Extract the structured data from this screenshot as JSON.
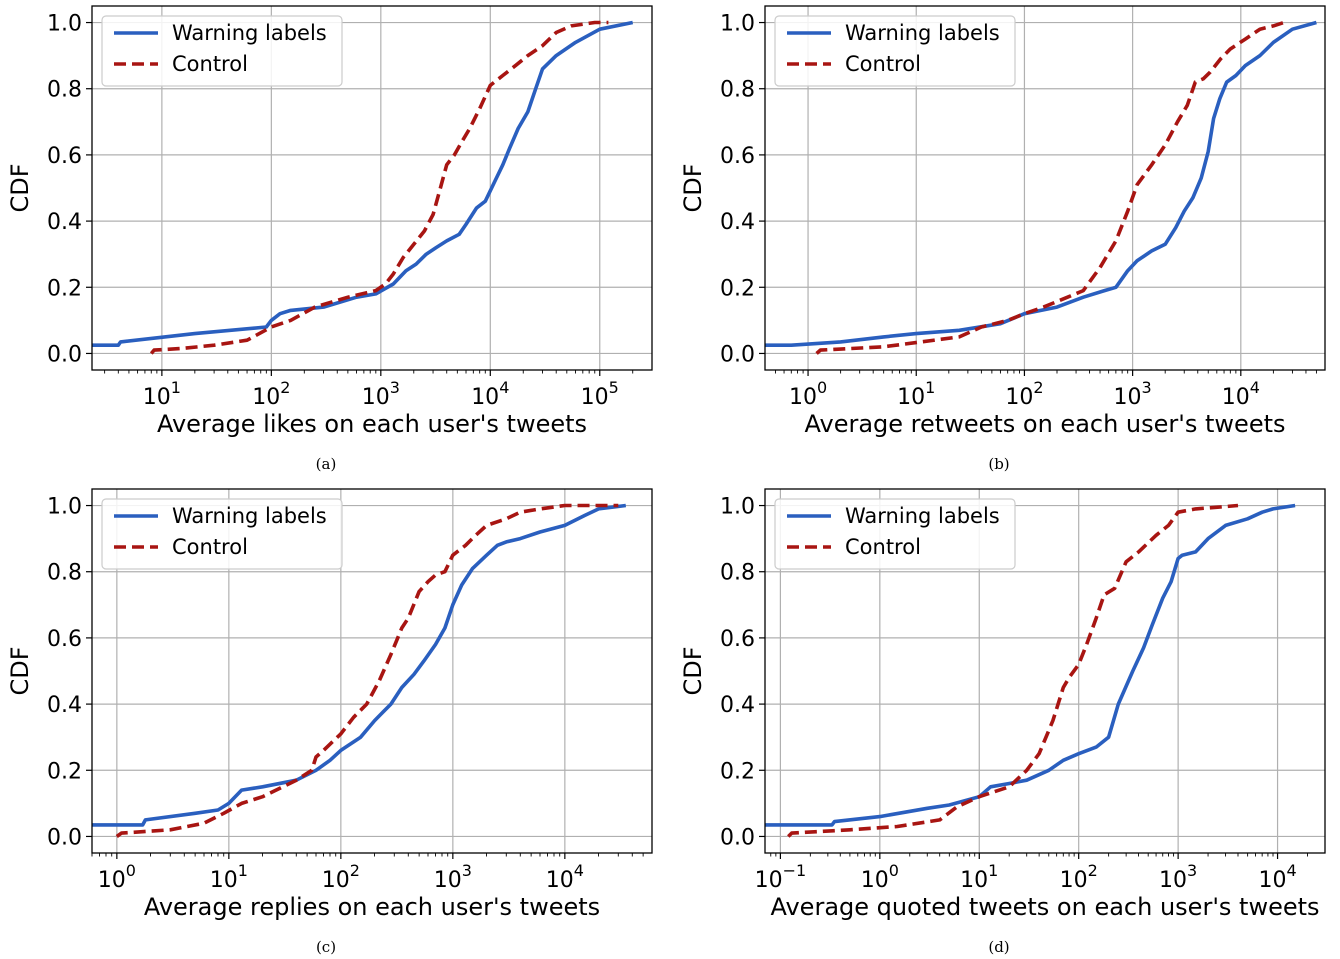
{
  "colors": {
    "warning": "#2a5fbf",
    "control": "#a81512",
    "grid": "#b0b0b0"
  },
  "chart_data": [
    {
      "type": "line",
      "caption": "(a)",
      "xscale": "log",
      "xlim": [
        2.3,
        300000
      ],
      "ylim": [
        -0.05,
        1.05
      ],
      "xlabel": "Average likes on each user's tweets",
      "ylabel": "CDF",
      "x_ticks": [
        {
          "base": "10",
          "exp": "1",
          "value": 10
        },
        {
          "base": "10",
          "exp": "2",
          "value": 100
        },
        {
          "base": "10",
          "exp": "3",
          "value": 1000
        },
        {
          "base": "10",
          "exp": "4",
          "value": 10000
        },
        {
          "base": "10",
          "exp": "5",
          "value": 100000
        }
      ],
      "y_ticks": [
        "0.0",
        "0.2",
        "0.4",
        "0.6",
        "0.8",
        "1.0"
      ],
      "grid": true,
      "legend_position": "top-left",
      "series": [
        {
          "name": "Warning labels",
          "style": "solid",
          "x": [
            2.3,
            4,
            4.2,
            20,
            90,
            100,
            120,
            150,
            300,
            600,
            900,
            1300,
            1700,
            2100,
            2600,
            3200,
            4000,
            5200,
            6000,
            7500,
            9000,
            11000,
            13000,
            15000,
            18000,
            22000,
            26000,
            30000,
            40000,
            60000,
            100000,
            200000
          ],
          "y": [
            0.025,
            0.025,
            0.035,
            0.06,
            0.08,
            0.1,
            0.12,
            0.13,
            0.14,
            0.17,
            0.18,
            0.21,
            0.25,
            0.27,
            0.3,
            0.32,
            0.34,
            0.36,
            0.39,
            0.44,
            0.46,
            0.52,
            0.57,
            0.62,
            0.68,
            0.73,
            0.8,
            0.86,
            0.9,
            0.94,
            0.98,
            1.0
          ]
        },
        {
          "name": "Control",
          "style": "dashed",
          "x": [
            8,
            8.5,
            15,
            30,
            60,
            100,
            150,
            250,
            500,
            900,
            1100,
            1300,
            1600,
            2000,
            2500,
            3000,
            3500,
            4000,
            4700,
            5500,
            6500,
            8000,
            10000,
            13000,
            17000,
            22000,
            30000,
            40000,
            55000,
            90000,
            120000
          ],
          "y": [
            0,
            0.01,
            0.015,
            0.025,
            0.04,
            0.08,
            0.1,
            0.14,
            0.17,
            0.19,
            0.21,
            0.24,
            0.29,
            0.33,
            0.37,
            0.42,
            0.5,
            0.57,
            0.6,
            0.64,
            0.68,
            0.74,
            0.81,
            0.84,
            0.87,
            0.9,
            0.93,
            0.97,
            0.99,
            1.0,
            1.0
          ]
        }
      ]
    },
    {
      "type": "line",
      "caption": "(b)",
      "xscale": "log",
      "xlim": [
        0.4,
        60000
      ],
      "ylim": [
        -0.05,
        1.05
      ],
      "xlabel": "Average retweets on each user's tweets",
      "ylabel": "CDF",
      "x_ticks": [
        {
          "base": "10",
          "exp": "0",
          "value": 1
        },
        {
          "base": "10",
          "exp": "1",
          "value": 10
        },
        {
          "base": "10",
          "exp": "2",
          "value": 100
        },
        {
          "base": "10",
          "exp": "3",
          "value": 1000
        },
        {
          "base": "10",
          "exp": "4",
          "value": 10000
        }
      ],
      "y_ticks": [
        "0.0",
        "0.2",
        "0.4",
        "0.6",
        "0.8",
        "1.0"
      ],
      "grid": true,
      "legend_position": "top-left",
      "series": [
        {
          "name": "Warning labels",
          "style": "solid",
          "x": [
            0.4,
            0.7,
            2,
            5,
            10,
            25,
            60,
            100,
            200,
            350,
            550,
            700,
            900,
            1100,
            1500,
            2000,
            2500,
            3000,
            3600,
            4300,
            5000,
            5600,
            6400,
            7400,
            9000,
            11000,
            15000,
            20000,
            30000,
            50000
          ],
          "y": [
            0.025,
            0.025,
            0.035,
            0.05,
            0.06,
            0.07,
            0.09,
            0.12,
            0.14,
            0.17,
            0.19,
            0.2,
            0.25,
            0.28,
            0.31,
            0.33,
            0.38,
            0.43,
            0.47,
            0.53,
            0.61,
            0.71,
            0.77,
            0.82,
            0.84,
            0.87,
            0.9,
            0.94,
            0.98,
            1.0
          ]
        },
        {
          "name": "Control",
          "style": "dashed",
          "x": [
            1.2,
            1.3,
            5,
            25,
            40,
            70,
            100,
            150,
            250,
            350,
            500,
            700,
            900,
            1100,
            1500,
            2000,
            2600,
            3200,
            3800,
            4500,
            5200,
            6500,
            8000,
            11000,
            15000,
            20000,
            25000
          ],
          "y": [
            0,
            0.01,
            0.02,
            0.05,
            0.08,
            0.1,
            0.12,
            0.14,
            0.17,
            0.19,
            0.26,
            0.34,
            0.43,
            0.51,
            0.57,
            0.63,
            0.7,
            0.75,
            0.82,
            0.83,
            0.85,
            0.89,
            0.92,
            0.95,
            0.98,
            0.99,
            1.0
          ]
        }
      ]
    },
    {
      "type": "line",
      "caption": "(c)",
      "xscale": "log",
      "xlim": [
        0.6,
        60000
      ],
      "ylim": [
        -0.05,
        1.05
      ],
      "xlabel": "Average replies on each user's tweets",
      "ylabel": "CDF",
      "x_ticks": [
        {
          "base": "10",
          "exp": "0",
          "value": 1
        },
        {
          "base": "10",
          "exp": "1",
          "value": 10
        },
        {
          "base": "10",
          "exp": "2",
          "value": 100
        },
        {
          "base": "10",
          "exp": "3",
          "value": 1000
        },
        {
          "base": "10",
          "exp": "4",
          "value": 10000
        }
      ],
      "y_ticks": [
        "0.0",
        "0.2",
        "0.4",
        "0.6",
        "0.8",
        "1.0"
      ],
      "grid": true,
      "legend_position": "top-left",
      "series": [
        {
          "name": "Warning labels",
          "style": "solid",
          "x": [
            0.6,
            1.7,
            1.8,
            5,
            8,
            10,
            13,
            20,
            40,
            60,
            80,
            100,
            150,
            200,
            280,
            350,
            450,
            550,
            700,
            850,
            1000,
            1200,
            1500,
            2000,
            2500,
            3000,
            4000,
            6000,
            10000,
            15000,
            20000,
            35000
          ],
          "y": [
            0.035,
            0.035,
            0.05,
            0.07,
            0.08,
            0.1,
            0.14,
            0.15,
            0.17,
            0.2,
            0.23,
            0.26,
            0.3,
            0.35,
            0.4,
            0.45,
            0.49,
            0.53,
            0.58,
            0.63,
            0.7,
            0.76,
            0.81,
            0.85,
            0.88,
            0.89,
            0.9,
            0.92,
            0.94,
            0.97,
            0.99,
            1.0
          ]
        },
        {
          "name": "Control",
          "style": "dashed",
          "x": [
            1.0,
            1.1,
            3,
            6,
            9,
            13,
            20,
            40,
            55,
            60,
            70,
            100,
            130,
            170,
            220,
            280,
            350,
            400,
            500,
            600,
            700,
            850,
            1000,
            1300,
            1600,
            2000,
            3000,
            4000,
            6000,
            10000,
            20000,
            30000
          ],
          "y": [
            0,
            0.01,
            0.02,
            0.04,
            0.07,
            0.1,
            0.12,
            0.17,
            0.2,
            0.24,
            0.26,
            0.31,
            0.36,
            0.4,
            0.47,
            0.55,
            0.63,
            0.66,
            0.74,
            0.77,
            0.79,
            0.8,
            0.85,
            0.88,
            0.91,
            0.94,
            0.96,
            0.98,
            0.99,
            1.0,
            1.0,
            1.0
          ]
        }
      ]
    },
    {
      "type": "line",
      "caption": "(d)",
      "xscale": "log",
      "xlim": [
        0.07,
        30000
      ],
      "ylim": [
        -0.05,
        1.05
      ],
      "xlabel": "Average quoted tweets on each user's tweets",
      "ylabel": "CDF",
      "x_ticks": [
        {
          "base": "10",
          "exp": "−1",
          "value": 0.1
        },
        {
          "base": "10",
          "exp": "0",
          "value": 1
        },
        {
          "base": "10",
          "exp": "1",
          "value": 10
        },
        {
          "base": "10",
          "exp": "2",
          "value": 100
        },
        {
          "base": "10",
          "exp": "3",
          "value": 1000
        },
        {
          "base": "10",
          "exp": "4",
          "value": 10000
        }
      ],
      "y_ticks": [
        "0.0",
        "0.2",
        "0.4",
        "0.6",
        "0.8",
        "1.0"
      ],
      "grid": true,
      "legend_position": "top-left",
      "series": [
        {
          "name": "Warning labels",
          "style": "solid",
          "x": [
            0.07,
            0.33,
            0.35,
            1,
            3,
            5,
            10,
            13,
            20,
            30,
            50,
            70,
            100,
            150,
            200,
            250,
            350,
            450,
            550,
            700,
            850,
            1000,
            1100,
            1500,
            2000,
            3000,
            5000,
            7000,
            9000,
            15000
          ],
          "y": [
            0.035,
            0.035,
            0.045,
            0.06,
            0.085,
            0.095,
            0.12,
            0.15,
            0.16,
            0.17,
            0.2,
            0.23,
            0.25,
            0.27,
            0.3,
            0.4,
            0.5,
            0.57,
            0.64,
            0.72,
            0.77,
            0.84,
            0.85,
            0.86,
            0.9,
            0.94,
            0.96,
            0.98,
            0.99,
            1.0
          ]
        },
        {
          "name": "Control",
          "style": "dashed",
          "x": [
            0.12,
            0.13,
            0.5,
            1.5,
            4,
            6,
            10,
            20,
            30,
            40,
            55,
            70,
            80,
            100,
            120,
            150,
            180,
            230,
            300,
            400,
            600,
            800,
            1000,
            1500,
            2500,
            4000
          ],
          "y": [
            0,
            0.01,
            0.02,
            0.03,
            0.05,
            0.09,
            0.12,
            0.15,
            0.2,
            0.25,
            0.35,
            0.45,
            0.48,
            0.52,
            0.58,
            0.66,
            0.73,
            0.75,
            0.83,
            0.86,
            0.91,
            0.94,
            0.98,
            0.99,
            0.995,
            1.0
          ]
        }
      ]
    }
  ]
}
